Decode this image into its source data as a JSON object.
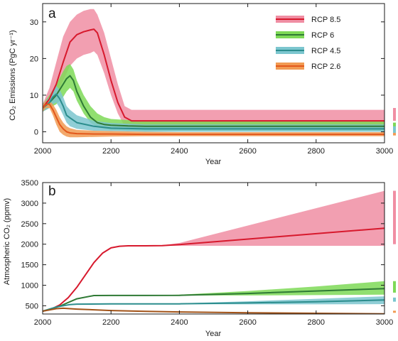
{
  "chart_data": [
    {
      "panel": "a",
      "type": "line",
      "xlabel": "Year",
      "ylabel": "CO₂ Emissions (PgC yr⁻¹)",
      "xlim": [
        2000,
        3000
      ],
      "ylim": [
        -3,
        35
      ],
      "xticks": [
        2000,
        2200,
        2400,
        2600,
        2800,
        3000
      ],
      "yticks": [
        0,
        10,
        20,
        30
      ],
      "legend_position": "top-right",
      "series": [
        {
          "name": "RCP 8.5",
          "color": "#d7192d",
          "band_color": "#f08ea3",
          "x": [
            2000,
            2020,
            2040,
            2060,
            2080,
            2100,
            2120,
            2140,
            2150,
            2160,
            2180,
            2200,
            2220,
            2240,
            2250,
            2260,
            2300,
            2400,
            3000
          ],
          "y": [
            6.5,
            9,
            13,
            19,
            24.5,
            26.5,
            27.3,
            27.8,
            28,
            27,
            21,
            14,
            8,
            4,
            3.5,
            3,
            3,
            3,
            3
          ],
          "upper": [
            7.5,
            12,
            19,
            26,
            30,
            32,
            33,
            33.5,
            33.5,
            32,
            27,
            20,
            13,
            7,
            6.5,
            6,
            6,
            6,
            6
          ],
          "lower": [
            5.5,
            7,
            10,
            14,
            18,
            20,
            21,
            21.5,
            22,
            21,
            16,
            10,
            5,
            1.5,
            1,
            1,
            1,
            1,
            1
          ]
        },
        {
          "name": "RCP 6",
          "color": "#2f7a35",
          "band_color": "#7ed957",
          "x": [
            2000,
            2020,
            2040,
            2060,
            2070,
            2080,
            2090,
            2100,
            2120,
            2140,
            2160,
            2180,
            2200,
            2250,
            2300,
            2400,
            3000
          ],
          "y": [
            6.5,
            8,
            10,
            13,
            14.5,
            15.3,
            14,
            11,
            7,
            4,
            2.5,
            2,
            1.8,
            1.6,
            1.5,
            1.5,
            1.5
          ],
          "upper": [
            7.5,
            10,
            13,
            16.5,
            18,
            18.5,
            17,
            14,
            10,
            7,
            5,
            4,
            3.5,
            3.2,
            3,
            3,
            3
          ],
          "lower": [
            5.5,
            6.5,
            7.5,
            9.5,
            11,
            12,
            11,
            8.5,
            5,
            2.5,
            1.2,
            0.8,
            0.5,
            0.4,
            0.3,
            0.3,
            0.3
          ]
        },
        {
          "name": "RCP 4.5",
          "color": "#2b8d8d",
          "band_color": "#7cc6cf",
          "x": [
            2000,
            2020,
            2030,
            2040,
            2050,
            2060,
            2070,
            2080,
            2100,
            2150,
            2200,
            2300,
            2400,
            3000
          ],
          "y": [
            6.5,
            8,
            9.5,
            10.3,
            9,
            7,
            4.5,
            3.8,
            2.5,
            1.5,
            1,
            0.8,
            0.8,
            0.8
          ],
          "upper": [
            7.5,
            9.5,
            11.5,
            12.5,
            11.5,
            9.5,
            7,
            6,
            4.5,
            3,
            2.4,
            2,
            2,
            2
          ],
          "lower": [
            5.5,
            6.5,
            7.5,
            8,
            6.5,
            4.5,
            2.5,
            1.5,
            0.8,
            0.3,
            0.2,
            0,
            0,
            0
          ]
        },
        {
          "name": "RCP 2.6",
          "color": "#e2571b",
          "band_color": "#f19a52",
          "x": [
            2000,
            2010,
            2020,
            2030,
            2040,
            2050,
            2060,
            2070,
            2080,
            2100,
            2150,
            2200,
            2300,
            2400,
            3000
          ],
          "y": [
            6.5,
            7.5,
            7.5,
            6,
            4,
            2,
            0.8,
            0,
            -0.3,
            -0.5,
            -0.6,
            -0.6,
            -0.7,
            -0.7,
            -0.7
          ],
          "upper": [
            7.5,
            8.5,
            8.5,
            7.5,
            6,
            4,
            2.5,
            1.5,
            1,
            0.5,
            0.3,
            0.2,
            0,
            -0.1,
            -0.1
          ],
          "lower": [
            5.5,
            6.5,
            6.5,
            4.5,
            2,
            0,
            -0.8,
            -1.3,
            -1.5,
            -1.5,
            -1.4,
            -1.3,
            -1.2,
            -1.2,
            -1.2
          ]
        }
      ],
      "right_markers": [
        {
          "color": "#f08ea3",
          "range": [
            3,
            6.5
          ]
        },
        {
          "color": "#7ed957",
          "range": [
            0.5,
            2.5
          ]
        },
        {
          "color": "#7cc6cf",
          "range": [
            -0.3,
            1.5
          ]
        },
        {
          "color": "#f19a52",
          "range": [
            -1,
            -0.3
          ]
        }
      ]
    },
    {
      "panel": "b",
      "type": "line",
      "xlabel": "Year",
      "ylabel": "Atmospheric CO₂ (ppmv)",
      "xlim": [
        2000,
        3000
      ],
      "ylim": [
        300,
        3500
      ],
      "xticks": [
        2000,
        2200,
        2400,
        2600,
        2800,
        3000
      ],
      "yticks": [
        500,
        1000,
        1500,
        2000,
        2500,
        3000,
        3500
      ],
      "series": [
        {
          "name": "RCP 8.5",
          "color": "#d7192d",
          "band_color": "#f08ea3",
          "x": [
            2000,
            2025,
            2050,
            2075,
            2100,
            2125,
            2150,
            2175,
            2200,
            2225,
            2250,
            2300,
            2350,
            2400,
            3000
          ],
          "y": [
            370,
            420,
            520,
            700,
            950,
            1250,
            1550,
            1780,
            1910,
            1950,
            1960,
            1960,
            1965,
            1990,
            2390
          ],
          "upper": [
            370,
            420,
            520,
            700,
            950,
            1250,
            1550,
            1780,
            1910,
            1950,
            1960,
            1960,
            1975,
            2030,
            3300
          ],
          "lower": [
            370,
            420,
            520,
            700,
            950,
            1250,
            1550,
            1780,
            1910,
            1950,
            1960,
            1960,
            1960,
            1960,
            1960
          ]
        },
        {
          "name": "RCP 6",
          "color": "#2f7a35",
          "band_color": "#7ed957",
          "x": [
            2000,
            2050,
            2100,
            2150,
            2200,
            2300,
            2400,
            2600,
            2800,
            3000
          ],
          "y": [
            370,
            490,
            670,
            750,
            752,
            752,
            755,
            800,
            860,
            920
          ],
          "upper": [
            370,
            490,
            670,
            750,
            752,
            752,
            770,
            860,
            970,
            1100
          ],
          "lower": [
            370,
            490,
            670,
            750,
            752,
            752,
            750,
            752,
            760,
            770
          ]
        },
        {
          "name": "RCP 4.5",
          "color": "#2b8d8d",
          "band_color": "#7cc6cf",
          "x": [
            2000,
            2040,
            2080,
            2100,
            2200,
            2300,
            2400,
            2600,
            2800,
            3000
          ],
          "y": [
            370,
            470,
            530,
            540,
            545,
            545,
            548,
            570,
            600,
            640
          ],
          "upper": [
            370,
            470,
            530,
            540,
            545,
            545,
            560,
            610,
            670,
            730
          ],
          "lower": [
            370,
            470,
            530,
            540,
            545,
            545,
            540,
            535,
            535,
            540
          ]
        },
        {
          "name": "RCP 2.6",
          "color": "#a25318",
          "band_color": "#f19a52",
          "x": [
            2000,
            2040,
            2060,
            2100,
            2200,
            2300,
            2400,
            2600,
            2800,
            3000
          ],
          "y": [
            370,
            430,
            440,
            420,
            385,
            365,
            350,
            330,
            318,
            305
          ],
          "upper": [
            370,
            430,
            440,
            420,
            385,
            368,
            355,
            337,
            326,
            315
          ],
          "lower": [
            370,
            430,
            440,
            420,
            385,
            362,
            345,
            323,
            310,
            298
          ]
        }
      ],
      "right_markers": [
        {
          "color": "#f08ea3",
          "range": [
            2000,
            3300
          ]
        },
        {
          "color": "#7ed957",
          "range": [
            820,
            1100
          ]
        },
        {
          "color": "#7cc6cf",
          "range": [
            600,
            700
          ]
        },
        {
          "color": "#f19a52",
          "range": [
            330,
            380
          ]
        }
      ]
    }
  ]
}
